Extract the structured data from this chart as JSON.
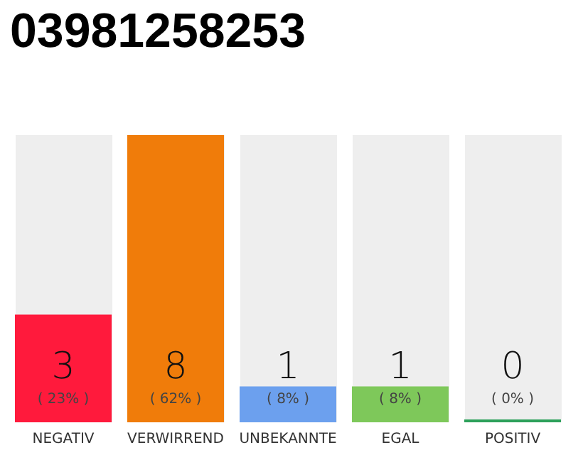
{
  "chart_data": {
    "type": "bar",
    "title": "03981258253",
    "categories": [
      "NEGATIV",
      "VERWIRREND",
      "UNBEKANNTE",
      "EGAL",
      "POSITIV"
    ],
    "values": [
      3,
      8,
      1,
      1,
      0
    ],
    "colors": [
      "#ff1a3c",
      "#f07c0a",
      "#6ca0ee",
      "#7ec85a",
      "#2ca05a"
    ],
    "value_labels": [
      "3\n( 23% )",
      "8\n( 62% )",
      "1\n( 8% )",
      "1\n( 8% )",
      "0\n( 0% )"
    ]
  }
}
